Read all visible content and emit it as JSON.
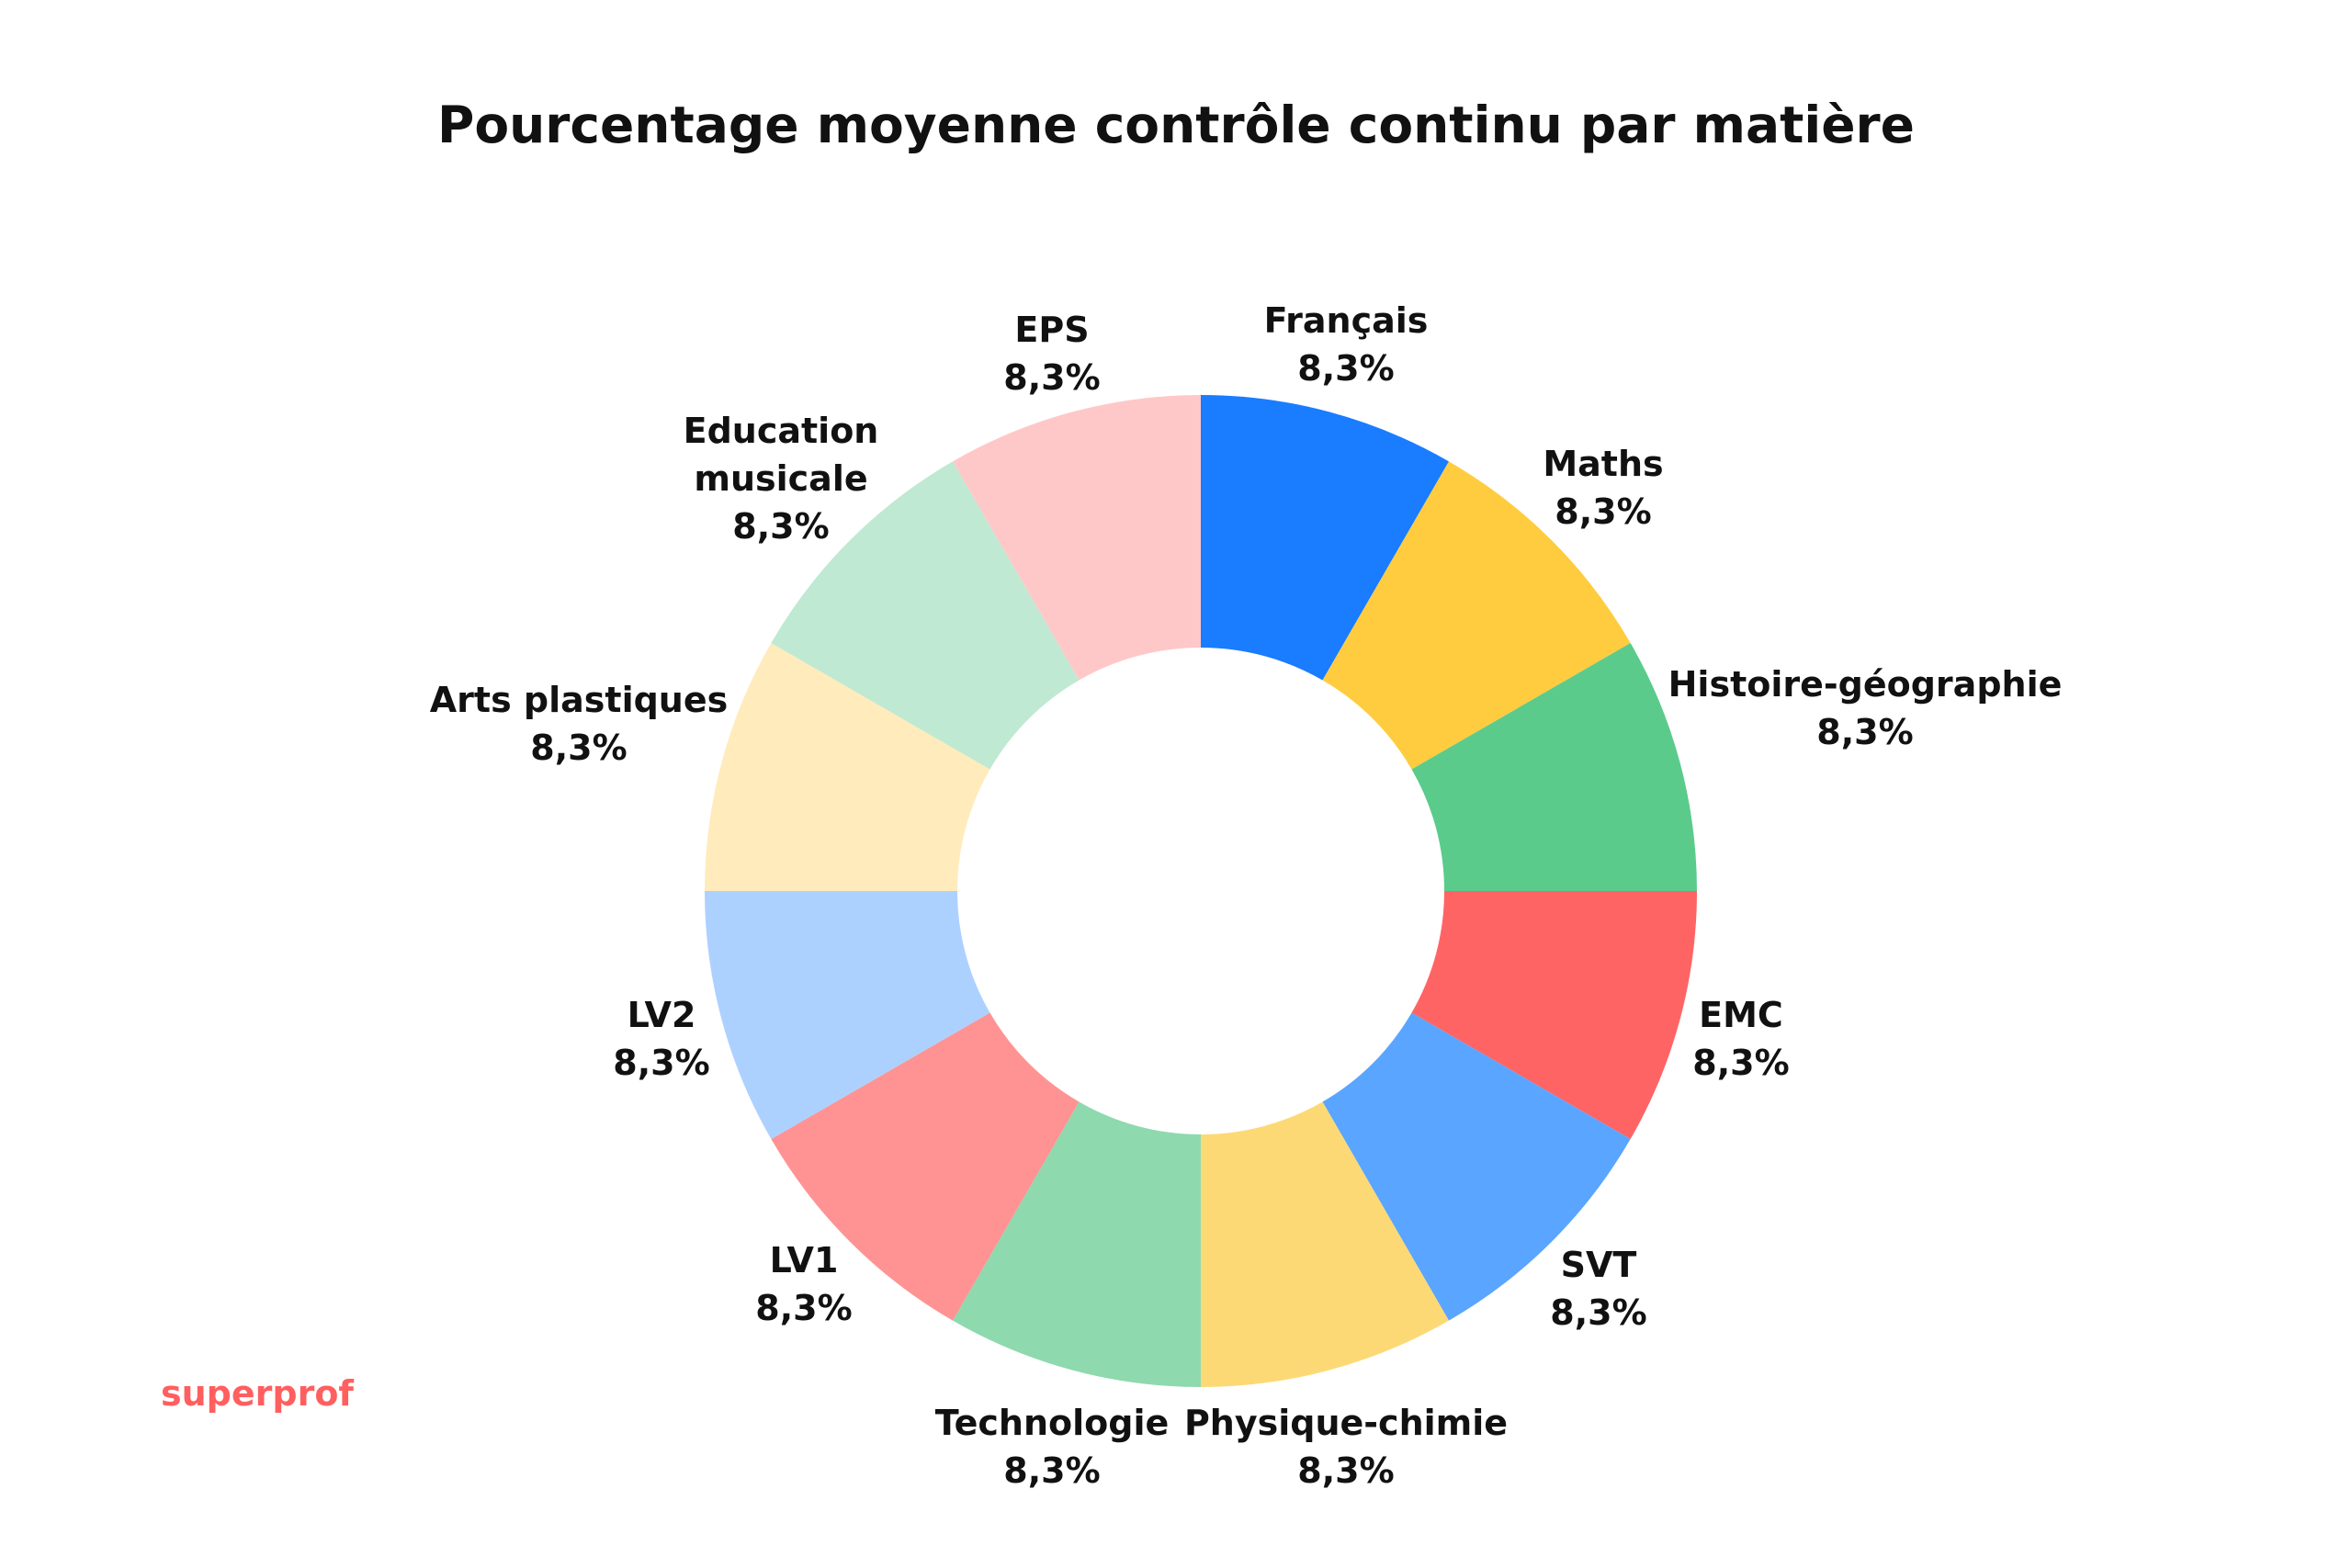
{
  "chart_data": {
    "type": "pie",
    "donut": true,
    "title": "Pourcentage moyenne contrôle continu par matière",
    "legend": "none",
    "value_unit": "%",
    "slices": [
      {
        "label": "Français",
        "value_label": "8,3%",
        "value": 8.3,
        "color": "#1a7cff"
      },
      {
        "label": "Maths",
        "value_label": "8,3%",
        "value": 8.3,
        "color": "#ffcc40"
      },
      {
        "label": "Histoire-géographie",
        "value_label": "8,3%",
        "value": 8.3,
        "color": "#5bcb8c"
      },
      {
        "label": "EMC",
        "value_label": "8,3%",
        "value": 8.3,
        "color": "#ff6464"
      },
      {
        "label": "SVT",
        "value_label": "8,3%",
        "value": 8.3,
        "color": "#5aa5ff"
      },
      {
        "label": "Physique-chimie",
        "value_label": "8,3%",
        "value": 8.3,
        "color": "#fdd975"
      },
      {
        "label": "Technologie",
        "value_label": "8,3%",
        "value": 8.3,
        "color": "#8ed9ae"
      },
      {
        "label": "LV1",
        "value_label": "8,3%",
        "value": 8.3,
        "color": "#ff9393"
      },
      {
        "label": "LV2",
        "value_label": "8,3%",
        "value": 8.3,
        "color": "#add1ff"
      },
      {
        "label": "Arts plastiques",
        "value_label": "8,3%",
        "value": 8.3,
        "color": "#ffebbc"
      },
      {
        "label": "Education\nmusicale",
        "value_label": "8,3%",
        "value": 8.3,
        "color": "#bfe9d2"
      },
      {
        "label": "EPS",
        "value_label": "8,3%",
        "value": 8.3,
        "color": "#ffc8c8"
      }
    ]
  },
  "brand": {
    "name": "superprof",
    "color": "#ff5f5f"
  }
}
